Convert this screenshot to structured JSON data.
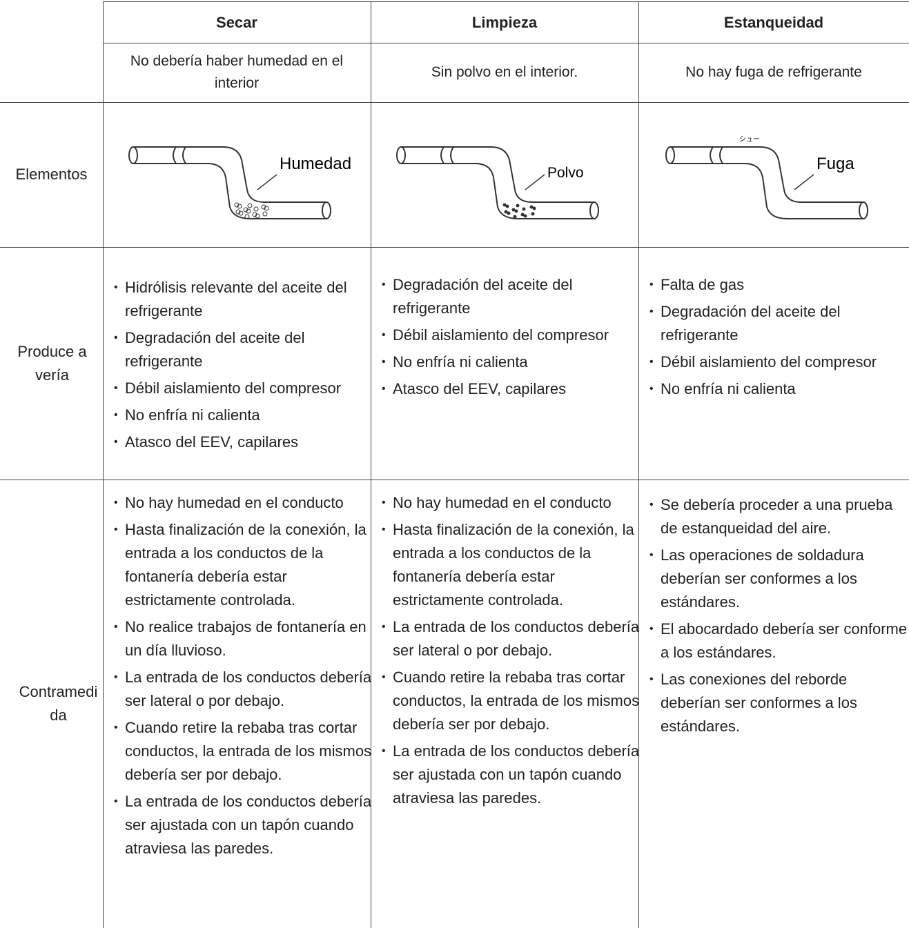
{
  "table": {
    "headers": [
      "Secar",
      "Limpieza",
      "Estanqueidad"
    ],
    "requirements": [
      "No debería haber humedad en el interior",
      "Sin polvo en el interior.",
      "No hay fuga de refrigerante"
    ],
    "elements": {
      "label": "Elementos",
      "bubbles": [
        "Humedad",
        "Polvo",
        "Fuga"
      ],
      "sound": "シュー"
    },
    "faults": {
      "label": "Produce avería",
      "items": [
        [
          "Hidrólisis relevante del aceite del refrigerante",
          "Degradación del aceite del refrigerante",
          "Débil aislamiento del compresor",
          "No enfría ni calienta",
          "Atasco del EEV, capilares"
        ],
        [
          "Degradación del aceite del refrigerante",
          "Débil aislamiento del compresor",
          "No enfría ni calienta",
          "Atasco del EEV, capilares"
        ],
        [
          "Falta de gas",
          "Degradación del aceite del refrigerante",
          "Débil aislamiento del compresor",
          "No enfría ni calienta"
        ]
      ]
    },
    "countermeasures": {
      "label": "Contramedida",
      "items": [
        [
          "No hay humedad en el conducto",
          "Hasta finalización de la conexión, la entrada a los conductos de la fontanería debería estar estrictamente controlada.",
          "No realice trabajos de fontanería en un día lluvioso.",
          "La entrada de los conductos debería ser lateral o por debajo.",
          "Cuando retire la rebaba tras cortar conductos, la entrada de los mismos debería ser por debajo.",
          "La entrada de los conductos debería ser ajustada con un tapón cuando atraviesa las paredes."
        ],
        [
          "No hay humedad en el conducto",
          "Hasta finalización de la conexión, la entrada a los conductos de la fontanería debería estar estrictamente controlada.",
          "La entrada de los conductos debería ser lateral o por debajo.",
          "Cuando retire la rebaba tras cortar conductos, la entrada de los mismos debería ser por debajo.",
          "La entrada de los conductos debería ser ajustada con un tapón cuando atraviesa las paredes."
        ],
        [
          "Se debería proceder a una prueba de estanqueidad del aire.",
          "Las operaciones de soldadura deberían ser conformes a los estándares.",
          "El abocardado debería ser conforme a los estándares.",
          "Las conexiones del reborde deberían ser conformes a los estándares."
        ]
      ]
    }
  }
}
